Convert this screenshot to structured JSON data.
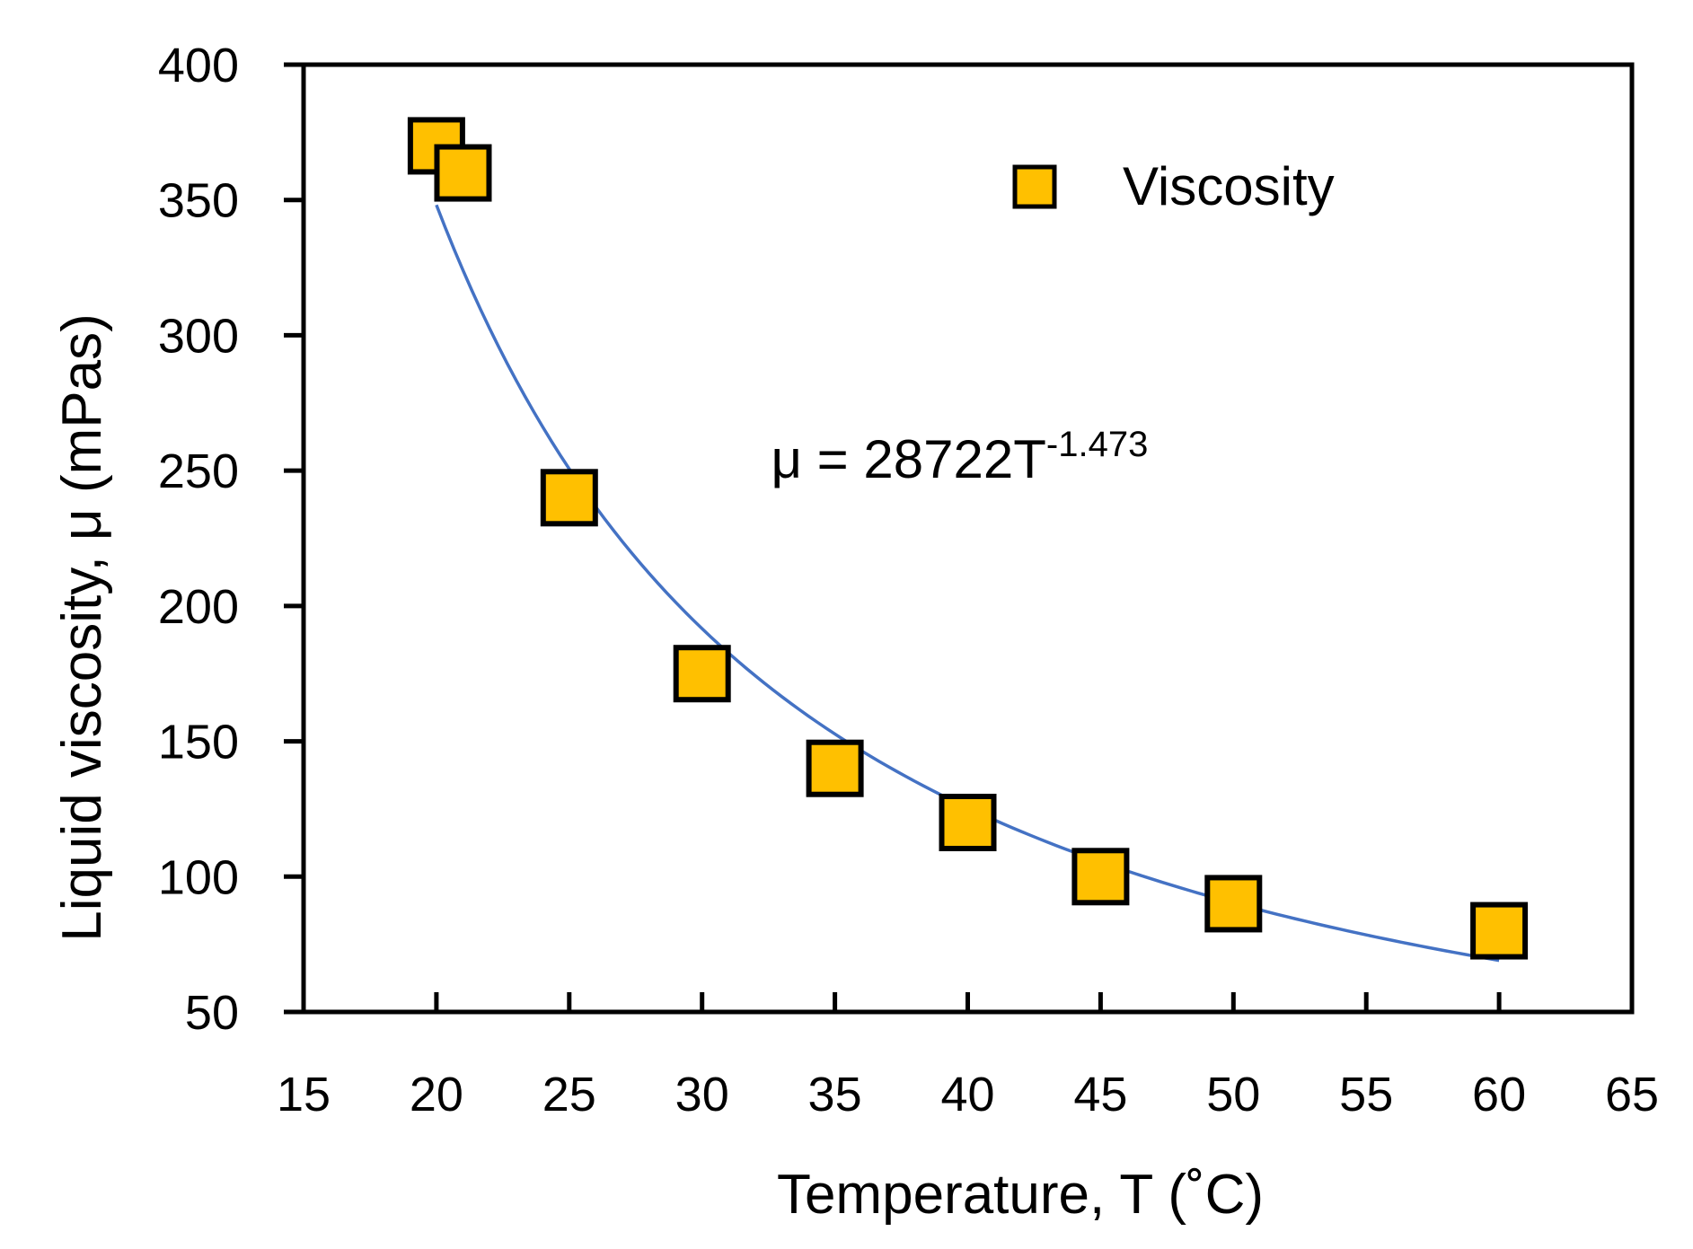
{
  "chart_data": {
    "type": "scatter",
    "title": "",
    "xlabel": "Temperature, T (˚C)",
    "ylabel": "Liquid viscosity, μ (mPas)",
    "xlim": [
      15,
      65
    ],
    "ylim": [
      50,
      400
    ],
    "xticks": [
      15,
      20,
      25,
      30,
      35,
      40,
      45,
      50,
      55,
      60,
      65
    ],
    "yticks": [
      50,
      100,
      150,
      200,
      250,
      300,
      350,
      400
    ],
    "grid": false,
    "legend_position": "top-right",
    "series": [
      {
        "name": "Viscosity",
        "marker": "square",
        "color": "#FFC000",
        "edge_color": "#000000",
        "x": [
          20,
          21,
          25,
          30,
          35,
          40,
          45,
          50,
          60
        ],
        "y": [
          370,
          360,
          240,
          175,
          140,
          120,
          100,
          90,
          80
        ]
      }
    ],
    "fit": {
      "type": "power",
      "coefficient": 28722,
      "exponent": -1.473,
      "x_range": [
        20,
        60
      ],
      "color": "#4472C4"
    },
    "annotation": {
      "text_main": "μ = 28722T",
      "text_superscript": "-1.473",
      "x": 33,
      "y": 254
    }
  },
  "colors": {
    "marker_fill": "#FFC000",
    "marker_edge": "#000000",
    "fit_line": "#4472C4",
    "axis": "#000000"
  }
}
